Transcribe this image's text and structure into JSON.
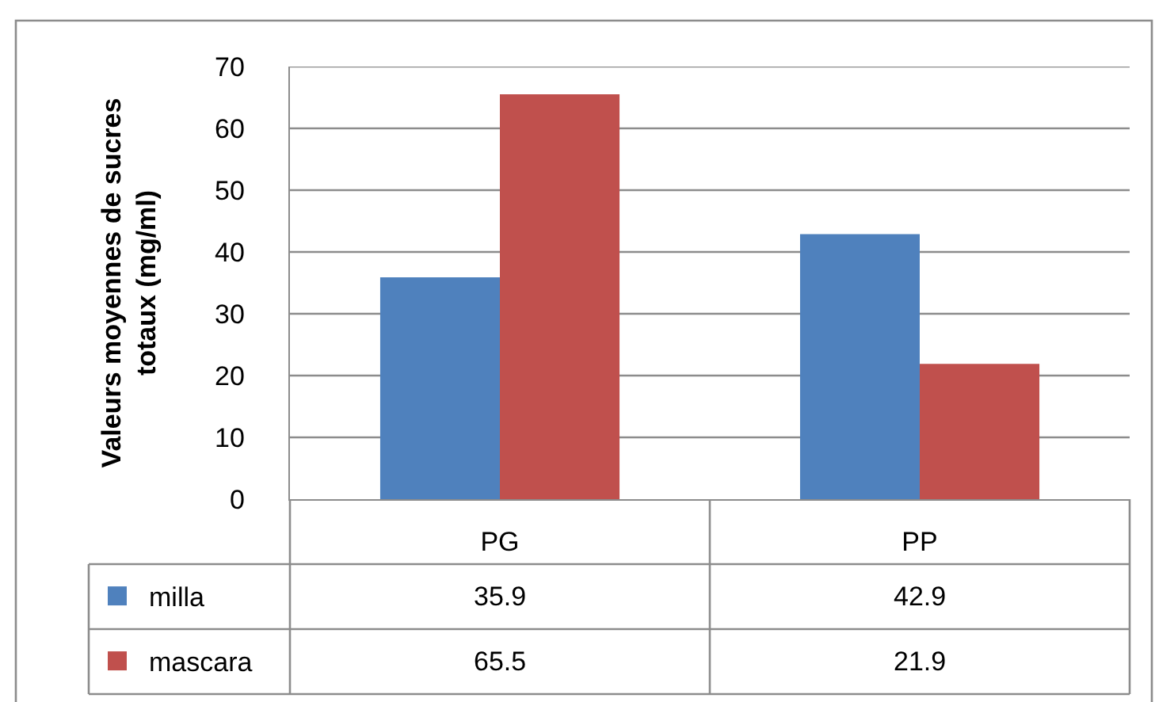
{
  "chart_data": {
    "type": "bar",
    "ylabel": "Valeurs moyennes de sucres totaux (mg/ml)",
    "categories": [
      "PG",
      "PP"
    ],
    "series": [
      {
        "name": "milla",
        "color": "#4f81bd",
        "values": [
          35.9,
          42.9
        ]
      },
      {
        "name": "mascara",
        "color": "#c0504d",
        "values": [
          65.5,
          21.9
        ]
      }
    ],
    "ylim": [
      0,
      70
    ],
    "yticks": [
      0,
      10,
      20,
      30,
      40,
      50,
      60,
      70
    ],
    "grid": "y",
    "legend": "bottom left",
    "data_labels": true
  }
}
